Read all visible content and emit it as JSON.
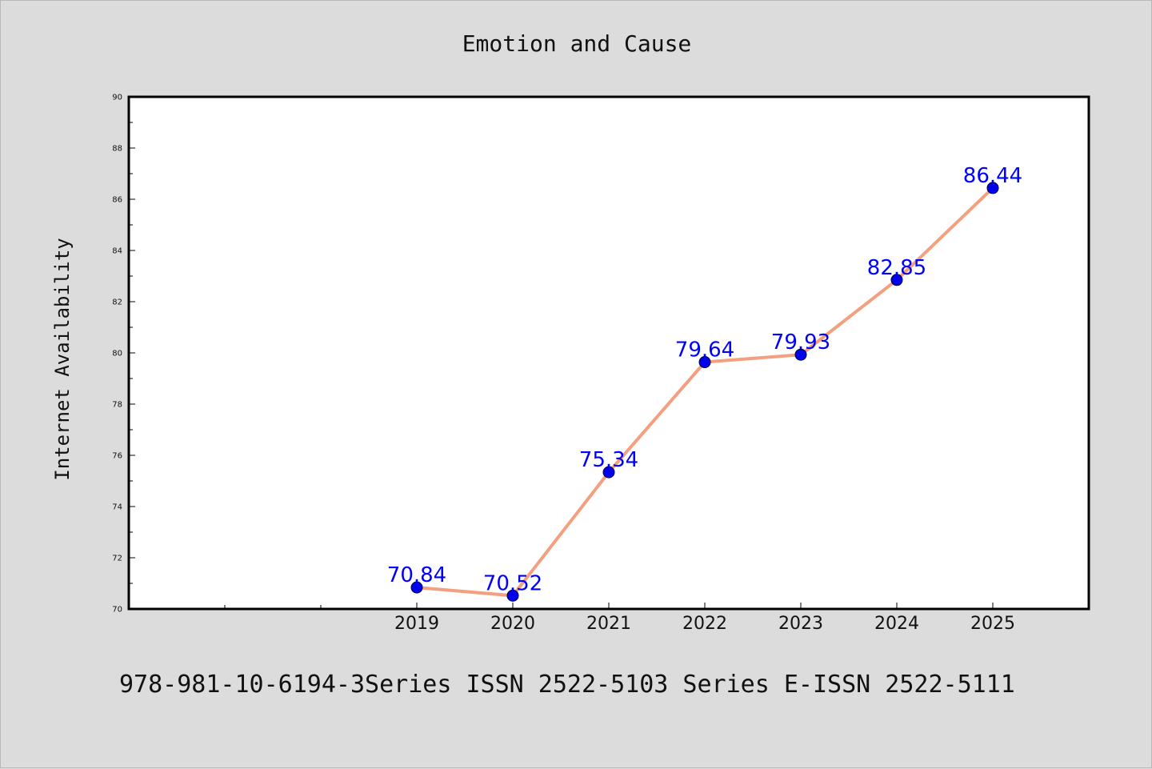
{
  "chart_data": {
    "type": "line",
    "title": "Emotion and Cause",
    "ylabel": "Internet Availability",
    "xlabel": "",
    "x": [
      "2019",
      "2020",
      "2021",
      "2022",
      "2023",
      "2024",
      "2025"
    ],
    "series": [
      {
        "values": [
          70.84,
          70.52,
          75.34,
          79.64,
          79.93,
          82.85,
          86.44
        ]
      }
    ],
    "data_labels": [
      "70.84",
      "70.52",
      "75.34",
      "79.64",
      "79.93",
      "82.85",
      "86.44"
    ],
    "ylim": [
      70,
      90
    ],
    "xlim": [
      2016,
      2026
    ],
    "yticks": [
      "70",
      "72",
      "74",
      "76",
      "78",
      "80",
      "82",
      "84",
      "86",
      "88",
      "90"
    ],
    "grid": false,
    "line_color": "#f4a080",
    "marker_color": "#0000ee",
    "label_color": "#0000ff"
  },
  "footer": "978-981-10-6194-3Series ISSN 2522-5103 Series E-ISSN 2522-5111"
}
